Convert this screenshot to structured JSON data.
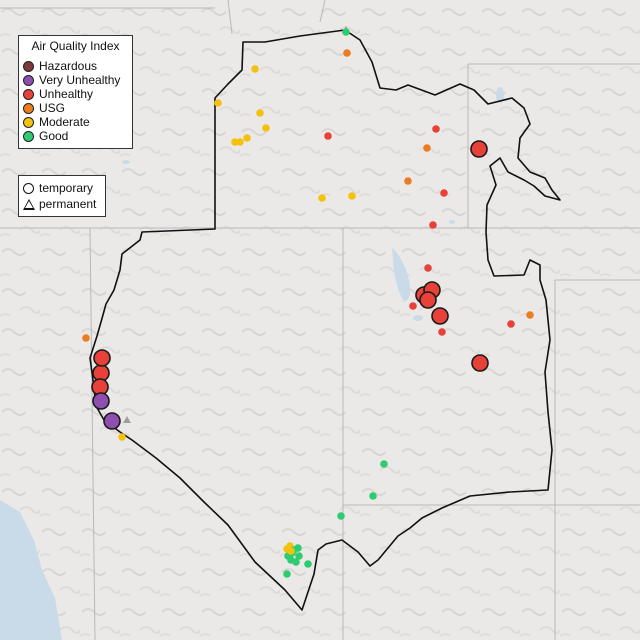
{
  "map": {
    "legend_aqi": {
      "title": "Air Quality Index",
      "items": [
        {
          "label": "Hazardous",
          "color": "#7e3a3a"
        },
        {
          "label": "Very Unhealthy",
          "color": "#8e4fb0"
        },
        {
          "label": "Unhealthy",
          "color": "#e8413a"
        },
        {
          "label": "USG",
          "color": "#ea7d1f"
        },
        {
          "label": "Moderate",
          "color": "#f2c20f"
        },
        {
          "label": "Good",
          "color": "#2ecc71"
        }
      ]
    },
    "legend_monitor_type": {
      "items": [
        {
          "label": "temporary",
          "shape": "circle"
        },
        {
          "label": "permanent",
          "shape": "triangle"
        }
      ]
    },
    "temporary_monitors": [
      {
        "aqi": "Unhealthy"
      },
      {
        "aqi": "Unhealthy"
      },
      {
        "aqi": "Unhealthy"
      },
      {
        "aqi": "Unhealthy"
      },
      {
        "aqi": "Unhealthy"
      },
      {
        "aqi": "Unhealthy"
      },
      {
        "aqi": "Unhealthy"
      },
      {
        "aqi": "Unhealthy"
      },
      {
        "aqi": "Unhealthy"
      },
      {
        "aqi": "Very Unhealthy"
      },
      {
        "aqi": "Very Unhealthy"
      }
    ],
    "permanent_monitors": [
      {
        "aqi": "Good"
      },
      {
        "aqi": "Moderate"
      },
      {
        "aqi": "Moderate"
      },
      {
        "aqi": "Moderate"
      },
      {
        "aqi": "Moderate"
      },
      {
        "aqi": "Moderate"
      },
      {
        "aqi": "Moderate"
      },
      {
        "aqi": "Moderate"
      },
      {
        "aqi": "Moderate"
      },
      {
        "aqi": "Moderate"
      },
      {
        "aqi": "Moderate"
      },
      {
        "aqi": "Moderate"
      },
      {
        "aqi": "USG"
      },
      {
        "aqi": "USG"
      },
      {
        "aqi": "USG"
      },
      {
        "aqi": "USG"
      },
      {
        "aqi": "USG"
      },
      {
        "aqi": "Unhealthy"
      },
      {
        "aqi": "Unhealthy"
      },
      {
        "aqi": "Unhealthy"
      },
      {
        "aqi": "Unhealthy"
      },
      {
        "aqi": "Unhealthy"
      },
      {
        "aqi": "Unhealthy"
      },
      {
        "aqi": "Unhealthy"
      },
      {
        "aqi": "Unhealthy"
      },
      {
        "aqi": "Moderate"
      },
      {
        "aqi": "Good"
      },
      {
        "aqi": "Good"
      },
      {
        "aqi": "Good"
      },
      {
        "aqi": "Good"
      },
      {
        "aqi": "Good"
      },
      {
        "aqi": "Good"
      },
      {
        "aqi": "Good"
      },
      {
        "aqi": "Good"
      },
      {
        "aqi": "Good"
      },
      {
        "aqi": "Good"
      },
      {
        "aqi": "Good"
      },
      {
        "aqi": "Good"
      },
      {
        "aqi": "Moderate"
      },
      {
        "aqi": "Moderate"
      }
    ]
  }
}
